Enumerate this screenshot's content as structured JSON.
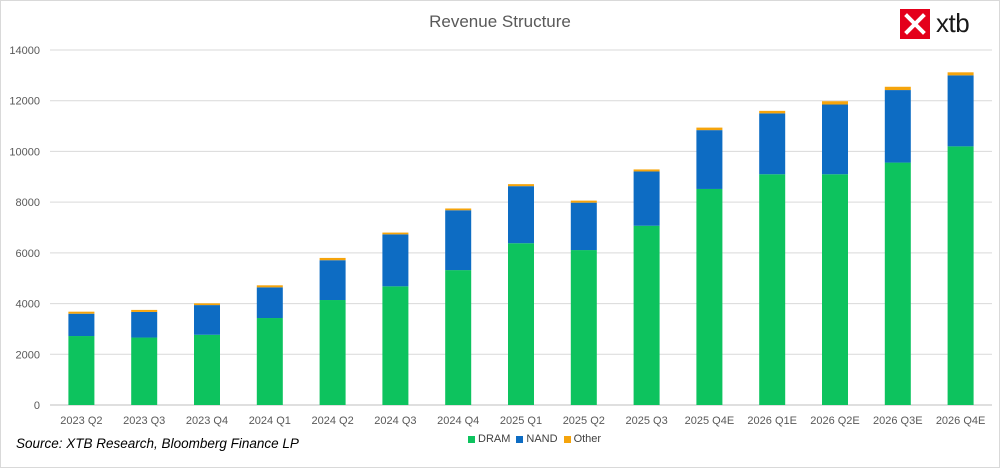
{
  "brand": {
    "logo_text": "xtb",
    "logo_color": "#e4001b"
  },
  "source_note": "Source: XTB Research, Bloomberg Finance LP",
  "colors": {
    "DRAM": "#0dc35e",
    "NAND": "#0d6cc3",
    "Other": "#f5a40c"
  },
  "chart_data": {
    "type": "bar",
    "stacked": true,
    "title": "Revenue Structure",
    "xlabel": "",
    "ylabel": "",
    "ylim": [
      0,
      14000
    ],
    "yticks": [
      0,
      2000,
      4000,
      6000,
      8000,
      10000,
      12000,
      14000
    ],
    "grid": true,
    "legend_position": "bottom",
    "categories": [
      "2023 Q2",
      "2023 Q3",
      "2023 Q4",
      "2024 Q1",
      "2024 Q2",
      "2024 Q3",
      "2024 Q4",
      "2025 Q1",
      "2025 Q2",
      "2025 Q3",
      "2025 Q4E",
      "2026 Q1E",
      "2026 Q2E",
      "2026 Q3E",
      "2026 Q4E"
    ],
    "series": [
      {
        "name": "DRAM",
        "values": [
          2720,
          2660,
          2770,
          3430,
          4140,
          4680,
          5320,
          6380,
          6110,
          7070,
          8520,
          9100,
          9100,
          9560,
          10200
        ]
      },
      {
        "name": "NAND",
        "values": [
          880,
          1010,
          1170,
          1210,
          1570,
          2050,
          2360,
          2250,
          1870,
          2140,
          2320,
          2400,
          2750,
          2860,
          2800
        ]
      },
      {
        "name": "Other",
        "values": [
          80,
          80,
          70,
          80,
          90,
          70,
          70,
          80,
          80,
          80,
          100,
          100,
          130,
          130,
          120
        ]
      }
    ]
  }
}
